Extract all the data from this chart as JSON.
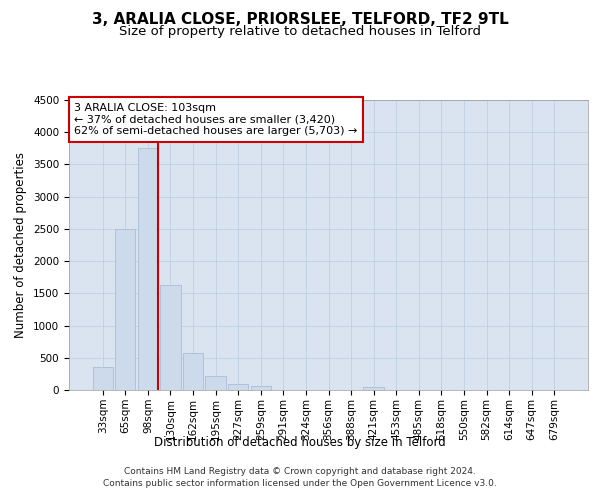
{
  "title": "3, ARALIA CLOSE, PRIORSLEE, TELFORD, TF2 9TL",
  "subtitle": "Size of property relative to detached houses in Telford",
  "xlabel": "Distribution of detached houses by size in Telford",
  "ylabel": "Number of detached properties",
  "categories": [
    "33sqm",
    "65sqm",
    "98sqm",
    "130sqm",
    "162sqm",
    "195sqm",
    "227sqm",
    "259sqm",
    "291sqm",
    "324sqm",
    "356sqm",
    "388sqm",
    "421sqm",
    "453sqm",
    "485sqm",
    "518sqm",
    "550sqm",
    "582sqm",
    "614sqm",
    "647sqm",
    "679sqm"
  ],
  "values": [
    350,
    2500,
    3750,
    1625,
    575,
    210,
    95,
    55,
    2,
    2,
    2,
    2,
    50,
    2,
    2,
    2,
    2,
    2,
    2,
    2,
    2
  ],
  "bar_color": "#cddaeb",
  "bar_edge_color": "#aabdd6",
  "grid_color": "#b8cde0",
  "background_color": "#dae4f0",
  "vline_color": "#cc0000",
  "vline_x_index": 2,
  "annotation_text": "3 ARALIA CLOSE: 103sqm\n← 37% of detached houses are smaller (3,420)\n62% of semi-detached houses are larger (5,703) →",
  "annotation_box_color": "#ffffff",
  "annotation_box_edge": "#cc0000",
  "ylim": [
    0,
    4500
  ],
  "yticks": [
    0,
    500,
    1000,
    1500,
    2000,
    2500,
    3000,
    3500,
    4000,
    4500
  ],
  "footer_text": "Contains HM Land Registry data © Crown copyright and database right 2024.\nContains public sector information licensed under the Open Government Licence v3.0.",
  "title_fontsize": 11,
  "subtitle_fontsize": 9.5,
  "axis_label_fontsize": 8.5,
  "tick_fontsize": 7.5,
  "annotation_fontsize": 8,
  "footer_fontsize": 6.5
}
